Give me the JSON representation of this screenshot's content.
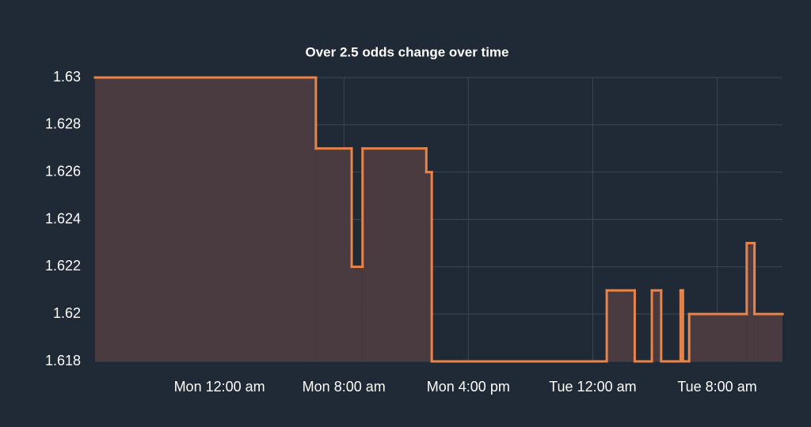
{
  "chart_data": {
    "type": "step-area",
    "title": "Over  2.5 odds change over time",
    "x": [
      -8,
      6.2,
      8.5,
      9.2,
      13.3,
      13.65,
      24.9,
      26.7,
      27.8,
      28.4,
      29.65,
      29.8,
      30.2,
      33.9,
      34.4,
      36.2
    ],
    "values": [
      1.63,
      1.627,
      1.622,
      1.627,
      1.626,
      1.618,
      1.621,
      1.618,
      1.621,
      1.618,
      1.621,
      1.618,
      1.62,
      1.623,
      1.62,
      1.62
    ],
    "xlim": [
      -8,
      36.2
    ],
    "xticks": [
      {
        "value": 0,
        "label": "Mon 12:00 am"
      },
      {
        "value": 8,
        "label": "Mon 8:00 am"
      },
      {
        "value": 16,
        "label": "Mon 4:00 pm"
      },
      {
        "value": 24,
        "label": "Tue 12:00 am"
      },
      {
        "value": 32,
        "label": "Tue 8:00 am"
      }
    ],
    "ylim": [
      1.618,
      1.63
    ],
    "yticks": [
      1.618,
      1.62,
      1.622,
      1.624,
      1.626,
      1.628,
      1.63
    ],
    "grid": true,
    "color": "#e8834a",
    "fill": "#4a3b40"
  }
}
